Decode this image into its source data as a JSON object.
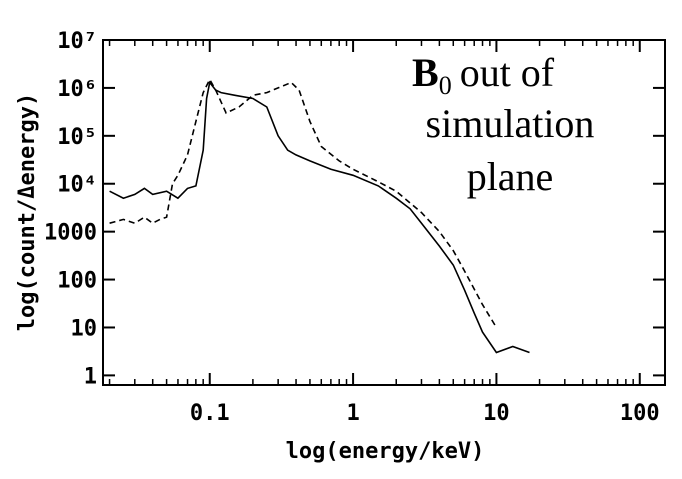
{
  "chart_data": {
    "type": "line",
    "xlabel": "log(energy/keV)",
    "ylabel": "log(count/Δenergy)",
    "annotation": {
      "symbol": "B",
      "subscript": "0",
      "lines": [
        "out of",
        "simulation",
        "plane"
      ]
    },
    "xscale": "log",
    "yscale": "log",
    "xlim": [
      0.018,
      150
    ],
    "ylim": [
      0.63,
      10000000
    ],
    "xticks": [
      0.1,
      1,
      10,
      100
    ],
    "yticks": [
      1,
      10,
      100,
      1000,
      {
        "value": 10000,
        "label": "10⁴"
      },
      {
        "value": 100000,
        "label": "10⁵"
      },
      {
        "value": 1000000,
        "label": "10⁶"
      },
      {
        "value": 10000000,
        "label": "10⁷"
      }
    ],
    "series": [
      {
        "style": "solid",
        "color": "#000000",
        "x": [
          0.02,
          0.025,
          0.03,
          0.035,
          0.04,
          0.05,
          0.06,
          0.07,
          0.08,
          0.09,
          0.095,
          0.1,
          0.11,
          0.12,
          0.15,
          0.2,
          0.25,
          0.3,
          0.35,
          0.4,
          0.5,
          0.7,
          1,
          1.5,
          2,
          2.5,
          3,
          4,
          5,
          6,
          7,
          8,
          10,
          13,
          17
        ],
        "values": [
          7000,
          5000,
          6000,
          8000,
          6000,
          7000,
          5000,
          8000,
          9000,
          50000,
          600000,
          1300000,
          900000,
          800000,
          700000,
          600000,
          400000,
          100000,
          50000,
          40000,
          30000,
          20000,
          15000,
          9000,
          5000,
          3000,
          1500,
          500,
          200,
          60,
          20,
          8,
          3,
          4,
          3
        ]
      },
      {
        "style": "dashed",
        "color": "#000000",
        "x": [
          0.02,
          0.025,
          0.03,
          0.035,
          0.04,
          0.045,
          0.05,
          0.055,
          0.06,
          0.07,
          0.08,
          0.09,
          0.1,
          0.11,
          0.13,
          0.16,
          0.2,
          0.25,
          0.3,
          0.37,
          0.42,
          0.5,
          0.6,
          0.8,
          1,
          1.5,
          2,
          3,
          4,
          5,
          6,
          8,
          10
        ],
        "values": [
          1500,
          1800,
          1500,
          2000,
          1500,
          1800,
          2000,
          10000,
          15000,
          40000,
          200000,
          800000,
          1500000,
          900000,
          300000,
          400000,
          700000,
          800000,
          1000000,
          1300000,
          900000,
          200000,
          60000,
          30000,
          20000,
          11000,
          7000,
          2500,
          1000,
          400,
          150,
          30,
          10
        ]
      }
    ]
  }
}
